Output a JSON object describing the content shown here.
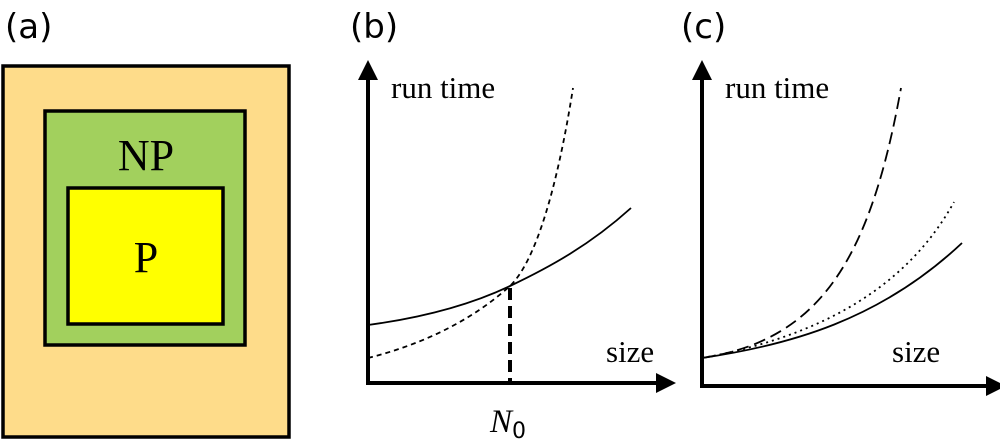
{
  "panels": {
    "a": {
      "label": "(a)",
      "outer_color": "#fedc8a",
      "np": {
        "label": "NP",
        "color": "#a2d05d"
      },
      "p": {
        "label": "P",
        "color": "#ffff00"
      }
    },
    "b": {
      "label": "(b)",
      "y_axis_label": "run time",
      "x_axis_label": "size",
      "crossover_label": "N",
      "crossover_subscript": "0"
    },
    "c": {
      "label": "(c)",
      "y_axis_label": "run time",
      "x_axis_label": "size"
    }
  }
}
